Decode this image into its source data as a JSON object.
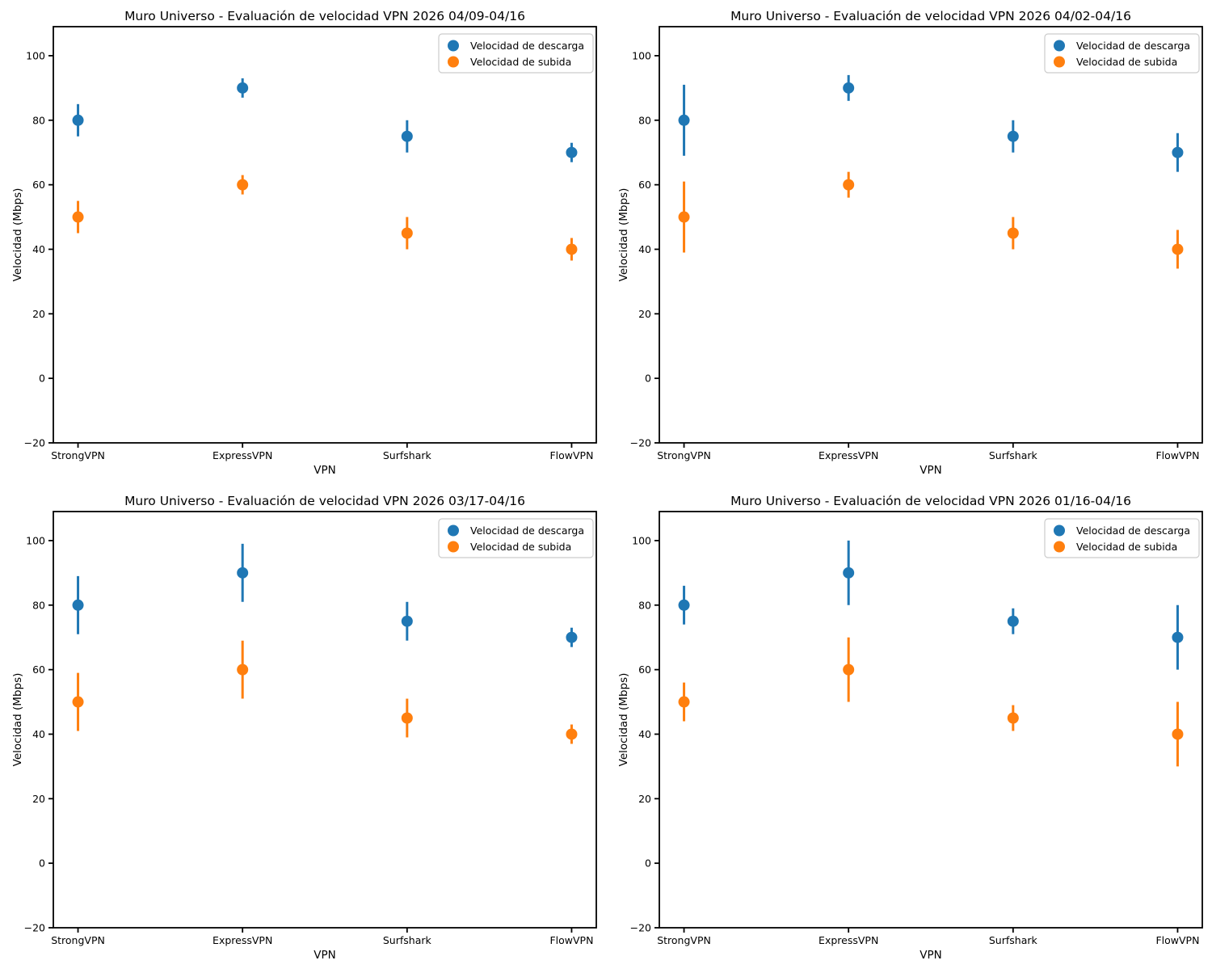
{
  "figure": {
    "background": "#ffffff",
    "axis_color": "#000000",
    "legend_border_color": "#cccccc",
    "legend_background": "#ffffff",
    "download_color": "#1f77b4",
    "upload_color": "#ff7f0e"
  },
  "chart_data": [
    {
      "type": "scatter",
      "title": "Muro Universo - Evaluación de velocidad VPN 2026 04/09-04/16",
      "xlabel": "VPN",
      "ylabel": "Velocidad (Mbps)",
      "categories": [
        "StrongVPN",
        "ExpressVPN",
        "Surfshark",
        "FlowVPN"
      ],
      "ylim": [
        -20,
        109
      ],
      "yticks": [
        -20,
        0,
        20,
        40,
        60,
        80,
        100
      ],
      "grid": false,
      "legend_position": "upper right",
      "series": [
        {
          "name": "Velocidad de descarga",
          "color": "#1f77b4",
          "marker": "circle",
          "values": [
            80,
            90,
            75,
            70
          ],
          "errors": [
            5,
            3,
            5,
            3
          ]
        },
        {
          "name": "Velocidad de subida",
          "color": "#ff7f0e",
          "marker": "circle",
          "values": [
            50,
            60,
            45,
            40
          ],
          "errors": [
            5,
            3,
            5,
            3.5
          ]
        }
      ]
    },
    {
      "type": "scatter",
      "title": "Muro Universo - Evaluación de velocidad VPN 2026 04/02-04/16",
      "xlabel": "VPN",
      "ylabel": "Velocidad (Mbps)",
      "categories": [
        "StrongVPN",
        "ExpressVPN",
        "Surfshark",
        "FlowVPN"
      ],
      "ylim": [
        -20,
        109
      ],
      "yticks": [
        -20,
        0,
        20,
        40,
        60,
        80,
        100
      ],
      "grid": false,
      "legend_position": "upper right",
      "series": [
        {
          "name": "Velocidad de descarga",
          "color": "#1f77b4",
          "marker": "circle",
          "values": [
            80,
            90,
            75,
            70
          ],
          "errors": [
            11,
            4,
            5,
            6
          ]
        },
        {
          "name": "Velocidad de subida",
          "color": "#ff7f0e",
          "marker": "circle",
          "values": [
            50,
            60,
            45,
            40
          ],
          "errors": [
            11,
            4,
            5,
            6
          ]
        }
      ]
    },
    {
      "type": "scatter",
      "title": "Muro Universo - Evaluación de velocidad VPN 2026 03/17-04/16",
      "xlabel": "VPN",
      "ylabel": "Velocidad (Mbps)",
      "categories": [
        "StrongVPN",
        "ExpressVPN",
        "Surfshark",
        "FlowVPN"
      ],
      "ylim": [
        -20,
        109
      ],
      "yticks": [
        -20,
        0,
        20,
        40,
        60,
        80,
        100
      ],
      "grid": false,
      "legend_position": "upper right",
      "series": [
        {
          "name": "Velocidad de descarga",
          "color": "#1f77b4",
          "marker": "circle",
          "values": [
            80,
            90,
            75,
            70
          ],
          "errors": [
            9,
            9,
            6,
            3
          ]
        },
        {
          "name": "Velocidad de subida",
          "color": "#ff7f0e",
          "marker": "circle",
          "values": [
            50,
            60,
            45,
            40
          ],
          "errors": [
            9,
            9,
            6,
            3
          ]
        }
      ]
    },
    {
      "type": "scatter",
      "title": "Muro Universo - Evaluación de velocidad VPN 2026 01/16-04/16",
      "xlabel": "VPN",
      "ylabel": "Velocidad (Mbps)",
      "categories": [
        "StrongVPN",
        "ExpressVPN",
        "Surfshark",
        "FlowVPN"
      ],
      "ylim": [
        -20,
        109
      ],
      "yticks": [
        -20,
        0,
        20,
        40,
        60,
        80,
        100
      ],
      "grid": false,
      "legend_position": "upper right",
      "series": [
        {
          "name": "Velocidad de descarga",
          "color": "#1f77b4",
          "marker": "circle",
          "values": [
            80,
            90,
            75,
            70
          ],
          "errors": [
            6,
            10,
            4,
            10
          ]
        },
        {
          "name": "Velocidad de subida",
          "color": "#ff7f0e",
          "marker": "circle",
          "values": [
            50,
            60,
            45,
            40
          ],
          "errors": [
            6,
            10,
            4,
            10
          ]
        }
      ]
    }
  ]
}
